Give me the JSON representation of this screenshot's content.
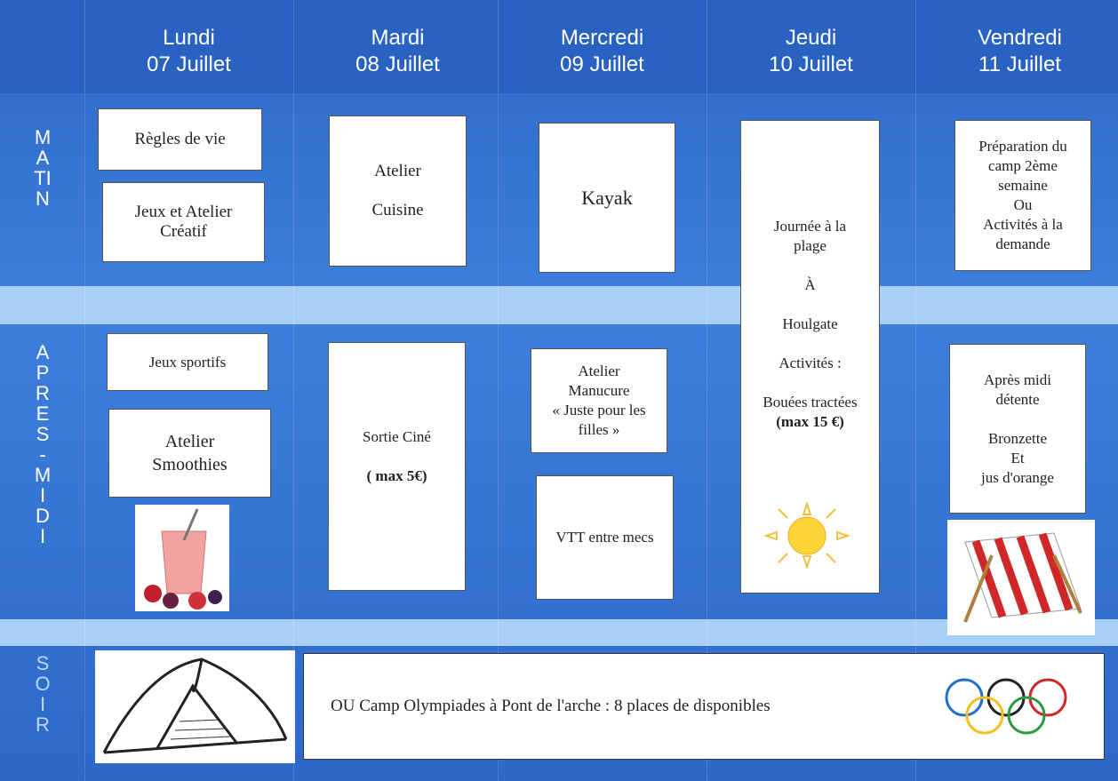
{
  "days": [
    {
      "day": "Lundi",
      "date": "07 Juillet"
    },
    {
      "day": "Mardi",
      "date": "08 Juillet"
    },
    {
      "day": "Mercredi",
      "date": "09 Juillet"
    },
    {
      "day": "Jeudi",
      "date": "10 Juillet"
    },
    {
      "day": "Vendredi",
      "date": "11 Juillet"
    }
  ],
  "periods": [
    "MATIN",
    "APRES-MIDI",
    "SOIR"
  ],
  "activities": {
    "regles": "Règles de vie",
    "jeux_creatif": "Jeux et Atelier\nCréatif",
    "cuisine": "Atelier\n\nCuisine",
    "kayak": "Kayak",
    "plage": {
      "text": "Journée à la\nplage\n\nÀ\n\nHoulgate\n\nActivités :\n\nBouées tractées\n",
      "bold": "(max 15 €)"
    },
    "preparation": "Préparation du\ncamp 2ème\nsemaine\nOu\nActivités à la\ndemande",
    "sportifs": "Jeux sportifs",
    "smoothies": "Atelier\nSmoothies",
    "cine": {
      "text": "Sortie Ciné\n\n",
      "bold": "( max 5€)"
    },
    "manucure": "Atelier\nManucure\n« Juste pour les\nfilles »",
    "vtt": "VTT entre mecs",
    "detente": "Après midi\ndétente\n\nBronzette\nEt\njus d'orange",
    "camp": "OU Camp Olympiades à Pont de l'arche : 8 places de disponibles"
  }
}
